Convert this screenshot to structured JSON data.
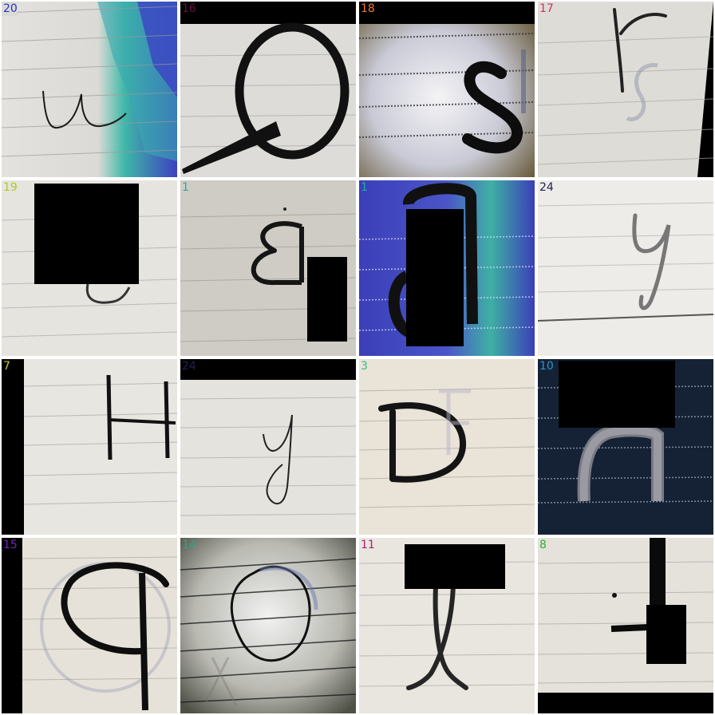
{
  "tiles": [
    {
      "label": "20",
      "label_color": "#2233cc",
      "glyph": "u"
    },
    {
      "label": "16",
      "label_color": "#661144",
      "glyph": "O"
    },
    {
      "label": "18",
      "label_color": "#ee7722",
      "glyph": "S"
    },
    {
      "label": "17",
      "label_color": "#cc3366",
      "glyph": "r"
    },
    {
      "label": "19",
      "label_color": "#aacc22",
      "glyph": "c"
    },
    {
      "label": "1",
      "label_color": "#22aaaa",
      "glyph": "B"
    },
    {
      "label": "1",
      "label_color": "#22aaaa",
      "glyph": "B"
    },
    {
      "label": "24",
      "label_color": "#222255",
      "glyph": "y"
    },
    {
      "label": "7",
      "label_color": "#cccc22",
      "glyph": "H"
    },
    {
      "label": "24",
      "label_color": "#222255",
      "glyph": "y"
    },
    {
      "label": "3",
      "label_color": "#33bb88",
      "glyph": "D"
    },
    {
      "label": "10",
      "label_color": "#2299cc",
      "glyph": "n"
    },
    {
      "label": "15",
      "label_color": "#7722bb",
      "glyph": "p"
    },
    {
      "label": "14",
      "label_color": "#22aa88",
      "glyph": "O"
    },
    {
      "label": "11",
      "label_color": "#aa2277",
      "glyph": "l"
    },
    {
      "label": "8",
      "label_color": "#33aa33",
      "glyph": "t"
    }
  ]
}
